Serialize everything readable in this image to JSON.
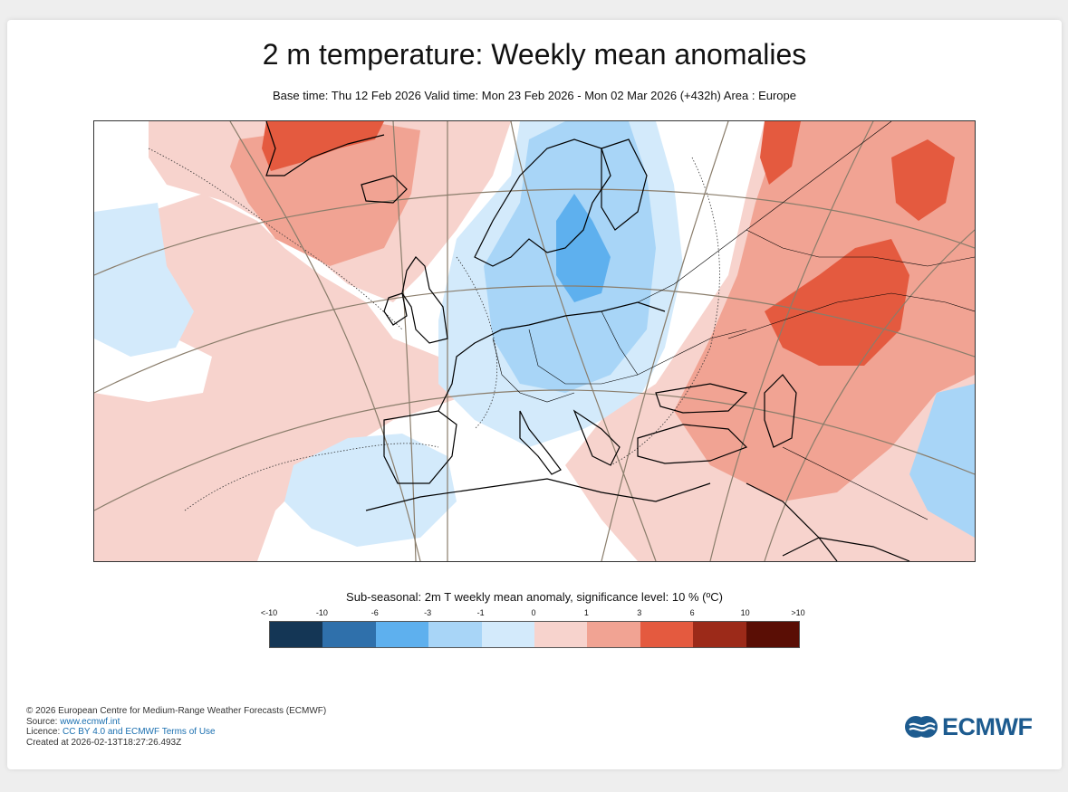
{
  "header": {
    "title": "2 m temperature: Weekly mean anomalies",
    "subtitle": "Base time: Thu 12 Feb 2026 Valid time: Mon 23 Feb 2026 - Mon 02 Mar 2026 (+432h) Area : Europe"
  },
  "legend": {
    "title": "Sub-seasonal: 2m T weekly mean anomaly, significance level: 10 % (ºC)",
    "ticks": [
      "<-10",
      "-10",
      "-6",
      "-3",
      "-1",
      "0",
      "1",
      "3",
      "6",
      "10",
      ">10"
    ],
    "colors": [
      "#143655",
      "#2f70ab",
      "#5eb0ee",
      "#a8d5f7",
      "#d3eafb",
      "#f7d3cd",
      "#f1a393",
      "#e45a3f",
      "#9c2a19",
      "#5a0e05"
    ]
  },
  "map_colors": {
    "background": "#ffffff",
    "light_warm": "#f7d3cd",
    "warm": "#f1a393",
    "strong_warm": "#e45a3f",
    "light_cool": "#d3eafb",
    "cool": "#a8d5f7",
    "strong_cool": "#5eb0ee"
  },
  "footer": {
    "copyright": "© 2026 European Centre for Medium-Range Weather Forecasts (ECMWF)",
    "source_label": "Source: ",
    "source_link": "www.ecmwf.int",
    "licence_label": "Licence: ",
    "licence_link": "CC BY 4.0 and ECMWF Terms of Use",
    "created": "Created at 2026-02-13T18:27:26.493Z"
  },
  "logo": {
    "text": "ECMWF",
    "icon": "ecmwf-logo-icon"
  }
}
